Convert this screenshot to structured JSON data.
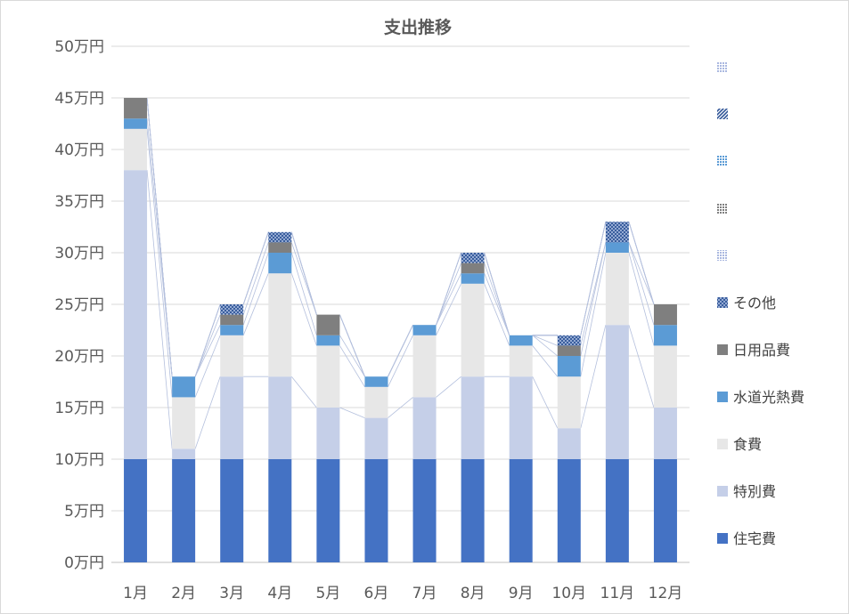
{
  "chart_data": {
    "type": "bar",
    "stacked": true,
    "title": "支出推移",
    "xlabel": "",
    "ylabel": "",
    "categories": [
      "1月",
      "2月",
      "3月",
      "4月",
      "5月",
      "6月",
      "7月",
      "8月",
      "9月",
      "10月",
      "11月",
      "12月"
    ],
    "y_ticks": [
      "0万円",
      "5万円",
      "10万円",
      "15万円",
      "20万円",
      "25万円",
      "30万円",
      "35万円",
      "40万円",
      "45万円",
      "50万円"
    ],
    "ylim": [
      0,
      50
    ],
    "y_unit": "万円",
    "grid": true,
    "legend_position": "right",
    "series_lines": true,
    "series": [
      {
        "name": "住宅費",
        "color": "#4472c4",
        "pattern": "solid",
        "values": [
          10,
          10,
          10,
          10,
          10,
          10,
          10,
          10,
          10,
          10,
          10,
          10
        ]
      },
      {
        "name": "特別費",
        "color": "#c5cfe8",
        "pattern": "solid",
        "values": [
          28,
          1,
          8,
          8,
          5,
          4,
          6,
          8,
          8,
          3,
          13,
          5
        ]
      },
      {
        "name": "食費",
        "color": "#e7e7e7",
        "pattern": "solid",
        "values": [
          4,
          5,
          4,
          10,
          6,
          3,
          6,
          9,
          3,
          5,
          7,
          6
        ]
      },
      {
        "name": "水道光熱費",
        "color": "#5b9bd5",
        "pattern": "solid",
        "values": [
          1,
          2,
          1,
          2,
          1,
          1,
          1,
          1,
          1,
          2,
          1,
          2
        ]
      },
      {
        "name": "日用品費",
        "color": "#7f7f7f",
        "pattern": "solid",
        "values": [
          2,
          0,
          1,
          1,
          2,
          0,
          0,
          1,
          0,
          1,
          0,
          2
        ]
      },
      {
        "name": "その他",
        "color": "#4472c4",
        "pattern": "crosshatch",
        "values": [
          0,
          0,
          1,
          1,
          0,
          0,
          0,
          1,
          0,
          1,
          2,
          0
        ]
      },
      {
        "color": "#c5cfe8",
        "pattern": "dots",
        "values": [
          0,
          0,
          0,
          0,
          0,
          0,
          0,
          0,
          0,
          0,
          0,
          0
        ]
      },
      {
        "color": "#a5a5a5",
        "pattern": "dots",
        "values": [
          0,
          0,
          0,
          0,
          0,
          0,
          0,
          0,
          0,
          0,
          0,
          0
        ]
      },
      {
        "color": "#5b9bd5",
        "pattern": "dots",
        "values": [
          0,
          0,
          0,
          0,
          0,
          0,
          0,
          0,
          0,
          0,
          0,
          0
        ]
      },
      {
        "color": "#4472c4",
        "pattern": "diagonal",
        "values": [
          0,
          0,
          0,
          0,
          0,
          0,
          0,
          0,
          0,
          0,
          0,
          0
        ]
      },
      {
        "color": "#c5cfe8",
        "pattern": "dots",
        "values": [
          0,
          0,
          0,
          0,
          0,
          0,
          0,
          0,
          0,
          0,
          0,
          0
        ]
      }
    ]
  }
}
